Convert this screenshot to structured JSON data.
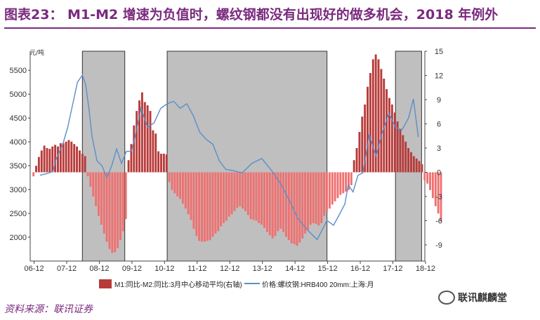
{
  "title": "图表23： M1-M2 增速为负值时，螺纹钢都没有出现好的做多机会，2018 年例外",
  "footer": "资料来源：联讯证券",
  "watermark": "联讯麒麟堂",
  "colors": {
    "title": "#7a2a7e",
    "bar": "#f07070",
    "bar_dark": "#b83a3a",
    "line": "#5b8fc8",
    "shade": "#bfbfbf"
  },
  "chart_data": {
    "type": "bar+line",
    "left_unit": "元/吨",
    "ylim_left": [
      1500,
      5900
    ],
    "yticks_left": [
      2000,
      2500,
      3000,
      3500,
      4000,
      4500,
      5000,
      5500
    ],
    "ylim_right": [
      -11,
      15
    ],
    "yticks_right": [
      -9,
      -6,
      -3,
      0,
      3,
      6,
      9,
      12,
      15
    ],
    "xlim": [
      2006.8,
      2018.9
    ],
    "xticks": [
      {
        "label": "06-12",
        "x": 2006.92
      },
      {
        "label": "07-12",
        "x": 2007.92
      },
      {
        "label": "08-12",
        "x": 2008.92
      },
      {
        "label": "09-12",
        "x": 2009.92
      },
      {
        "label": "10-12",
        "x": 2010.92
      },
      {
        "label": "11-12",
        "x": 2011.92
      },
      {
        "label": "12-12",
        "x": 2012.92
      },
      {
        "label": "13-12",
        "x": 2013.92
      },
      {
        "label": "14-12",
        "x": 2014.92
      },
      {
        "label": "15-12",
        "x": 2015.92
      },
      {
        "label": "16-12",
        "x": 2016.92
      },
      {
        "label": "17-12",
        "x": 2017.92
      },
      {
        "label": "18-12",
        "x": 2018.92
      }
    ],
    "shaded_periods": [
      [
        2008.4,
        2009.7
      ],
      [
        2011.0,
        2015.9
      ],
      [
        2018.0,
        2018.8
      ]
    ],
    "series": [
      {
        "name": "M1:同比-M2:同比:3月中心移动平均(右轴)",
        "axis": "right",
        "kind": "bar",
        "x_start": 2006.9,
        "x_step": 0.0833,
        "values": [
          -0.5,
          0.8,
          1.9,
          2.7,
          3.3,
          3.0,
          2.9,
          3.2,
          3.4,
          3.2,
          3.6,
          3.6,
          3.8,
          4.0,
          3.8,
          3.5,
          3.2,
          2.7,
          2.3,
          2.0,
          -0.5,
          -1.8,
          -3.0,
          -4.2,
          -5.4,
          -6.5,
          -7.6,
          -8.6,
          -9.5,
          -10.0,
          -9.9,
          -9.4,
          -8.4,
          -7.3,
          -5.8,
          1.5,
          3.5,
          5.8,
          7.6,
          8.9,
          9.9,
          8.7,
          8.3,
          7.6,
          5.2,
          4.8,
          2.6,
          2.3,
          2.3,
          2.2,
          -1.2,
          -2.2,
          -2.6,
          -3.0,
          -3.3,
          -3.9,
          -4.5,
          -5.2,
          -5.9,
          -7.0,
          -7.9,
          -8.5,
          -8.6,
          -8.6,
          -8.5,
          -8.4,
          -8.0,
          -7.6,
          -7.3,
          -6.7,
          -6.3,
          -6.0,
          -5.5,
          -5.2,
          -4.8,
          -4.4,
          -4.2,
          -4.5,
          -4.8,
          -5.3,
          -5.8,
          -5.9,
          -6.0,
          -6.3,
          -6.5,
          -6.9,
          -7.4,
          -7.8,
          -8.2,
          -7.9,
          -7.3,
          -7.0,
          -7.4,
          -8.0,
          -8.4,
          -8.8,
          -8.9,
          -9.1,
          -8.7,
          -8.2,
          -7.6,
          -7.2,
          -6.5,
          -6.3,
          -6.4,
          -6.6,
          -6.3,
          -5.4,
          -4.8,
          -4.5,
          -4.0,
          -3.6,
          -3.2,
          -2.8,
          -2.6,
          -2.4,
          -2.2,
          -1.6,
          1.5,
          3.0,
          5.0,
          6.9,
          8.4,
          10.6,
          12.3,
          14.0,
          14.6,
          14.0,
          12.8,
          11.6,
          10.3,
          9.2,
          8.4,
          7.4,
          6.3,
          5.4,
          4.6,
          3.8,
          3.0,
          2.5,
          2.0,
          1.7,
          1.4,
          1.0,
          -1.0,
          -1.4,
          -2.2,
          -3.2,
          -4.2,
          -5.1,
          -6.1
        ]
      },
      {
        "name": "价格:螺纹钢:HRB400 20mm:上海:月",
        "axis": "left",
        "kind": "line",
        "x": [
          2007.1,
          2007.3,
          2007.5,
          2007.6,
          2007.8,
          2007.95,
          2008.1,
          2008.25,
          2008.4,
          2008.5,
          2008.6,
          2008.7,
          2008.85,
          2009.0,
          2009.15,
          2009.3,
          2009.45,
          2009.6,
          2009.75,
          2009.9,
          2010.0,
          2010.2,
          2010.4,
          2010.6,
          2010.8,
          2011.0,
          2011.2,
          2011.4,
          2011.6,
          2011.8,
          2012.0,
          2012.2,
          2012.4,
          2012.6,
          2012.8,
          2013.0,
          2013.3,
          2013.6,
          2013.9,
          2014.2,
          2014.5,
          2014.8,
          2015.0,
          2015.3,
          2015.6,
          2015.9,
          2016.1,
          2016.3,
          2016.45,
          2016.55,
          2016.7,
          2016.85,
          2017.0,
          2017.2,
          2017.4,
          2017.6,
          2017.8,
          2018.0,
          2018.2,
          2018.4,
          2018.55,
          2018.7
        ],
        "y": [
          3300,
          3330,
          3380,
          3650,
          3950,
          4300,
          4780,
          5250,
          5400,
          5200,
          4700,
          4100,
          3600,
          3500,
          3250,
          3500,
          3850,
          3550,
          3800,
          3800,
          4050,
          4700,
          4300,
          4400,
          4700,
          4800,
          4850,
          4700,
          4800,
          4550,
          4200,
          4050,
          3950,
          3600,
          3420,
          3400,
          3350,
          3550,
          3650,
          3400,
          3100,
          2700,
          2400,
          2150,
          1950,
          2350,
          2250,
          2500,
          2700,
          3100,
          2950,
          3300,
          3350,
          4150,
          3700,
          4200,
          4600,
          4300,
          4250,
          4500,
          4900,
          4100
        ]
      }
    ]
  }
}
